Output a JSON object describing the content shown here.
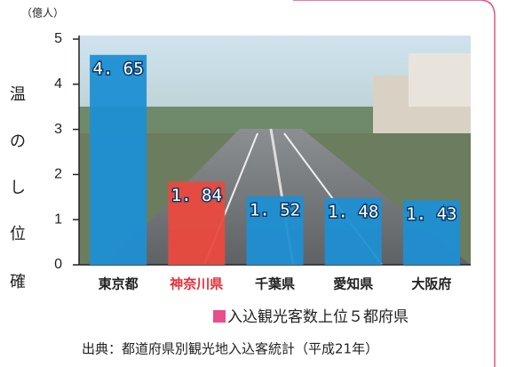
{
  "page_fragments": [
    "温",
    "の",
    "し",
    "位",
    "確"
  ],
  "chart_data": {
    "type": "bar",
    "y_unit_label": "（億人）",
    "categories": [
      "東京都",
      "神奈川県",
      "千葉県",
      "愛知県",
      "大阪府"
    ],
    "values": [
      4.65,
      1.84,
      1.52,
      1.48,
      1.43
    ],
    "value_labels": [
      "4. 65",
      "1. 84",
      "1. 52",
      "1. 48",
      "1. 43"
    ],
    "colors": [
      "#1e8fd3",
      "#ea4a3e",
      "#1e8fd3",
      "#1e8fd3",
      "#1e8fd3"
    ],
    "label_colors": [
      "#222222",
      "#e6303a",
      "#222222",
      "#222222",
      "#222222"
    ],
    "ylim": [
      0,
      5
    ],
    "yticks": [
      0,
      1,
      2,
      3,
      4,
      5
    ],
    "legend": "入込観光客数上位５都府県",
    "legend_color": "#e6508c",
    "source": "出典：都道府県別観光地入込客統計（平成21年）"
  }
}
